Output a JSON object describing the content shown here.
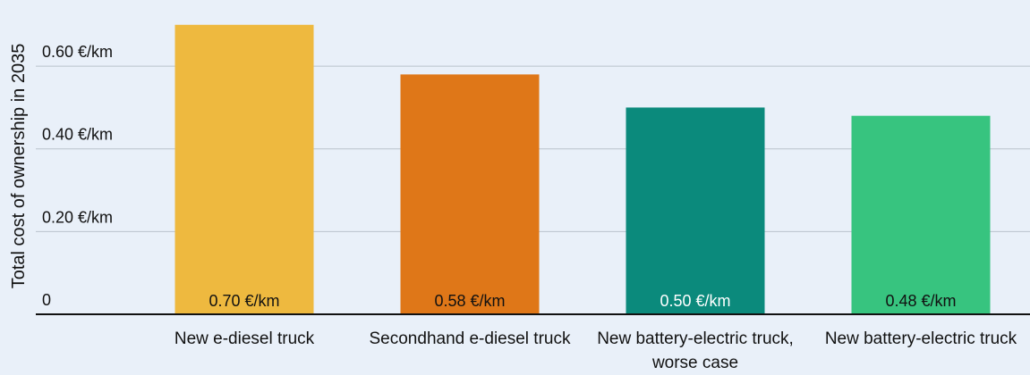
{
  "chart_data": {
    "type": "bar",
    "y_axis_label": "Total cost of ownership in 2035",
    "categories": [
      "New e-diesel truck",
      "Secondhand e-diesel truck",
      "New battery-electric truck, worse case",
      "New battery-electric truck"
    ],
    "values": [
      0.7,
      0.58,
      0.5,
      0.48
    ],
    "value_labels": [
      "0.70 €/km",
      "0.58 €/km",
      "0.50 €/km",
      "0.48 €/km"
    ],
    "colors": [
      "#eeb93f",
      "#df7718",
      "#0b8a7c",
      "#37c47f"
    ],
    "ylim": [
      0,
      0.76
    ],
    "yticks": [
      0,
      {
        "value": 0.2,
        "label": "0.20 €/km"
      },
      {
        "value": 0.4,
        "label": "0.40 €/km"
      },
      {
        "value": 0.6,
        "label": "0.60 €/km"
      }
    ],
    "grid": true
  }
}
